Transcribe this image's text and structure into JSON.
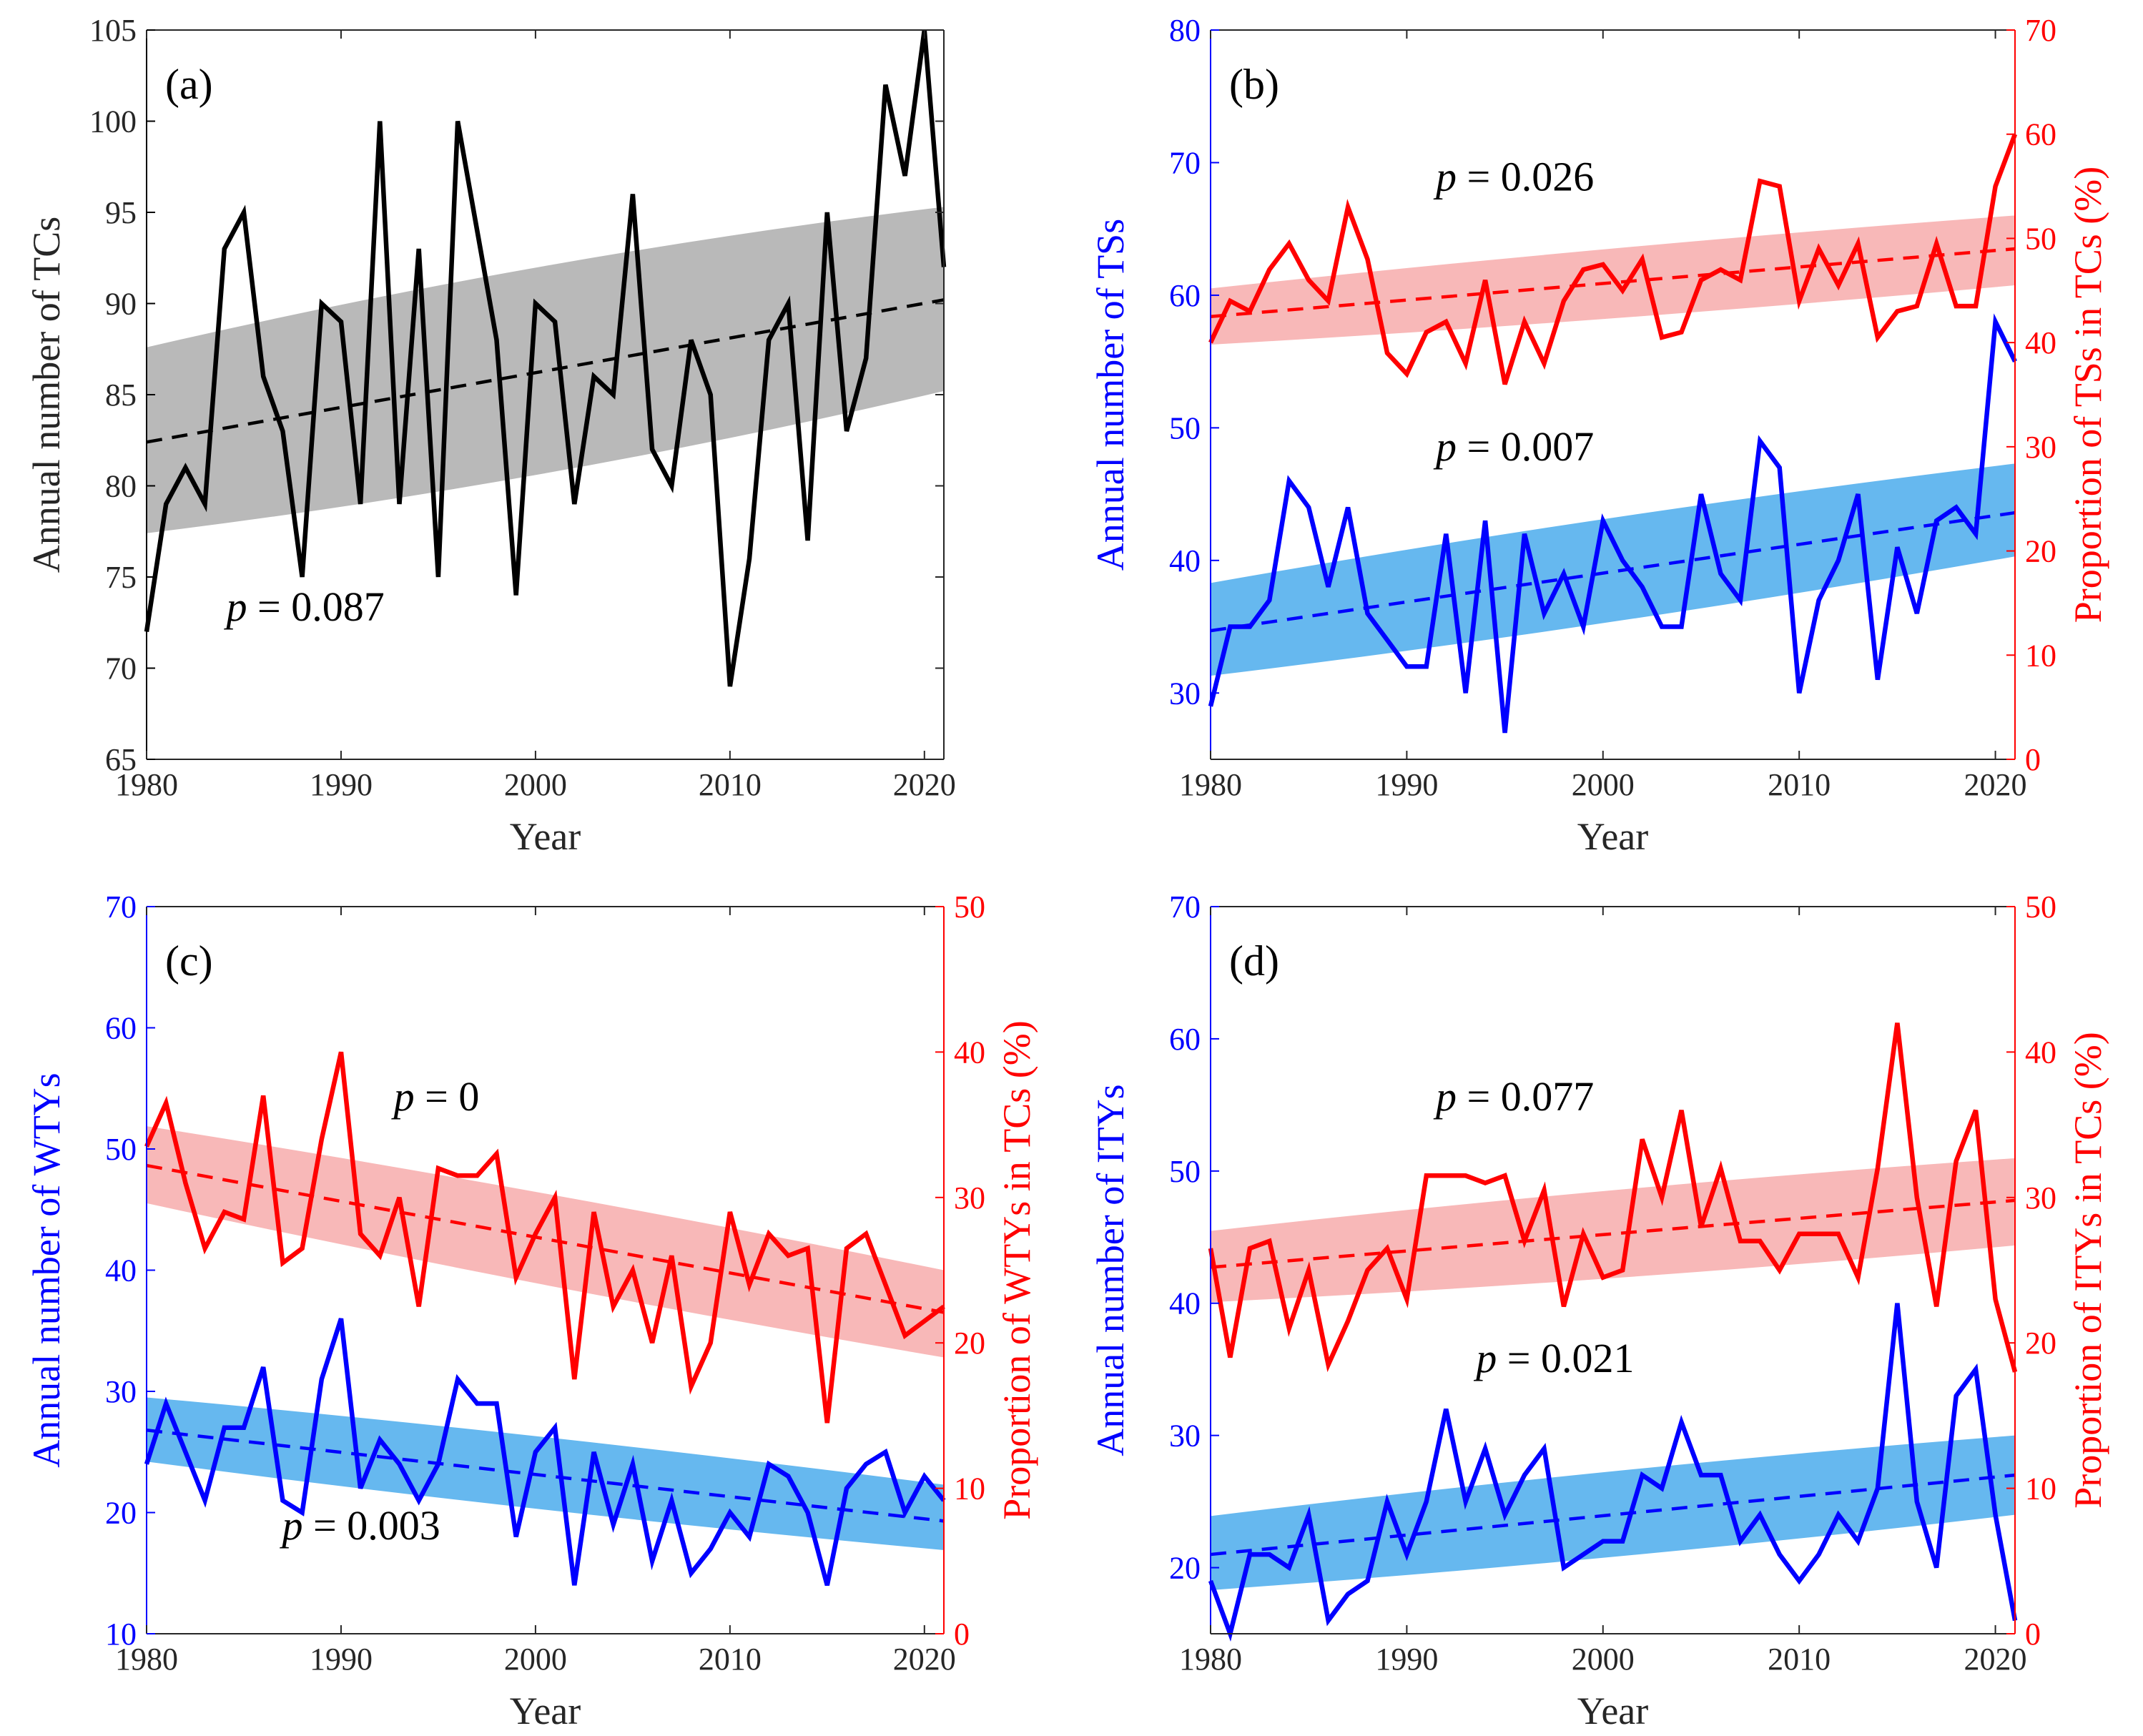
{
  "colors": {
    "black": "#000000",
    "blue": "#0000ff",
    "red": "#ff0000",
    "blue_band": "#66b8ef",
    "red_band": "#f8b8b8",
    "gray_band": "#b9b9b9"
  },
  "chart_data": [
    {
      "id": "a",
      "type": "line",
      "label": "(a)",
      "xlabel": "Year",
      "ylabel_left": "Annual number of TCs",
      "xlim": [
        1980,
        2021
      ],
      "xticks": [
        1980,
        1990,
        2000,
        2010,
        2020
      ],
      "left": {
        "ylim": [
          65,
          105
        ],
        "ticks": [
          65,
          70,
          75,
          80,
          85,
          90,
          95,
          100,
          105
        ]
      },
      "series": [
        {
          "name": "TCs",
          "axis": "left",
          "color": "#000000",
          "band": "#b9b9b9",
          "x_start": 1980,
          "values": [
            72,
            79,
            81,
            79,
            93,
            95,
            86,
            83,
            75,
            90,
            89,
            79,
            100,
            79,
            93,
            75,
            100,
            94,
            88,
            74,
            90,
            89,
            79,
            86,
            85,
            96,
            82,
            80,
            88,
            85,
            69,
            76,
            88,
            90,
            77,
            95,
            83,
            87,
            102,
            97,
            105,
            92
          ],
          "trend": [
            82.4,
            90.2
          ],
          "band_low": [
            77.4,
            85.2
          ],
          "band_high": [
            87.6,
            95.3
          ],
          "p_label": "= 0.087",
          "p_pos": "lower-left"
        }
      ]
    },
    {
      "id": "b",
      "type": "line",
      "label": "(b)",
      "xlabel": "Year",
      "ylabel_left": "Annual number of TSs",
      "ylabel_right": "Proportion of TSs in TCs (%)",
      "xlim": [
        1980,
        2021
      ],
      "xticks": [
        1980,
        1990,
        2000,
        2010,
        2020
      ],
      "left": {
        "ylim": [
          25,
          80
        ],
        "ticks": [
          30,
          40,
          50,
          60,
          70,
          80
        ]
      },
      "right": {
        "ylim": [
          0,
          70
        ],
        "ticks": [
          0,
          10,
          20,
          30,
          40,
          50,
          60,
          70
        ]
      },
      "series": [
        {
          "name": "TSs",
          "axis": "left",
          "color": "#0000ff",
          "band": "#66b8ef",
          "x_start": 1980,
          "values": [
            29,
            35,
            35,
            37,
            46,
            44,
            38,
            44,
            36,
            34,
            32,
            32,
            42,
            30,
            43,
            27,
            42,
            36,
            39,
            35,
            43,
            40,
            38,
            35,
            35,
            45,
            39,
            37,
            49,
            47,
            30,
            37,
            40,
            45,
            31,
            41,
            36,
            43,
            44,
            42,
            58,
            55
          ],
          "trend": [
            34.7,
            43.6
          ],
          "band_low": [
            31.3,
            40.3
          ],
          "band_high": [
            38.3,
            47.3
          ],
          "p_label": "= 0.007",
          "p_pos": "middle"
        },
        {
          "name": "Proportion of TSs",
          "axis": "right",
          "color": "#ff0000",
          "band": "#f8b8b8",
          "x_start": 1980,
          "values": [
            40,
            44,
            43,
            47,
            49.5,
            46,
            44,
            53,
            48,
            39,
            37,
            41,
            42,
            38,
            46,
            36,
            42,
            38,
            44,
            47,
            47.5,
            45,
            48,
            40.5,
            41,
            46,
            47,
            46,
            55.5,
            55,
            44,
            49,
            45.5,
            49.5,
            40.5,
            43,
            43.5,
            49.5,
            43.5,
            43.5,
            55,
            60
          ],
          "trend": [
            42.5,
            49.0
          ],
          "band_low": [
            39.8,
            45.5
          ],
          "band_high": [
            45.2,
            52.2
          ],
          "p_label": "= 0.026",
          "p_pos": "upper"
        }
      ]
    },
    {
      "id": "c",
      "type": "line",
      "label": "(c)",
      "xlabel": "Year",
      "ylabel_left": "Annual number of WTYs",
      "ylabel_right": "Proportion of WTYs in TCs (%)",
      "xlim": [
        1980,
        2021
      ],
      "xticks": [
        1980,
        1990,
        2000,
        2010,
        2020
      ],
      "left": {
        "ylim": [
          10,
          70
        ],
        "ticks": [
          10,
          20,
          30,
          40,
          50,
          60,
          70
        ]
      },
      "right": {
        "ylim": [
          0,
          50
        ],
        "ticks": [
          0,
          10,
          20,
          30,
          40,
          50
        ]
      },
      "series": [
        {
          "name": "WTYs",
          "axis": "left",
          "color": "#0000ff",
          "band": "#66b8ef",
          "x_start": 1980,
          "values": [
            24,
            29,
            25,
            21,
            27,
            27,
            32,
            21,
            20,
            31,
            36,
            22,
            26,
            24,
            21,
            24,
            31,
            29,
            29,
            18,
            25,
            27,
            14,
            25,
            19,
            24,
            16,
            21,
            15,
            17,
            20,
            18,
            24,
            23,
            20,
            14,
            22,
            24,
            25,
            20,
            23,
            21
          ],
          "trend": [
            26.8,
            19.3
          ],
          "band_low": [
            24.2,
            16.9
          ],
          "band_high": [
            29.5,
            22.3
          ],
          "p_label": "= 0.003",
          "p_pos": "lower"
        },
        {
          "name": "Proportion of WTYs",
          "axis": "right",
          "color": "#ff0000",
          "band": "#f8b8b8",
          "x_start": 1980,
          "values": [
            33.5,
            36.5,
            31,
            26.5,
            29,
            28.5,
            37,
            25.5,
            26.5,
            34,
            40,
            27.5,
            26,
            30,
            22.5,
            32,
            31.5,
            31.5,
            33,
            24.5,
            27.5,
            30,
            17.5,
            29,
            22.5,
            25,
            20,
            26,
            17,
            20,
            29,
            24,
            27.5,
            26,
            26.5,
            14.5,
            26.5,
            27.5,
            24,
            20.5,
            21.5,
            22.5
          ],
          "trend": [
            32.2,
            22.1
          ],
          "band_low": [
            29.6,
            19.0
          ],
          "band_high": [
            34.9,
            25.0
          ],
          "p_label": "= 0",
          "p_pos": "upper"
        }
      ]
    },
    {
      "id": "d",
      "type": "line",
      "label": "(d)",
      "xlabel": "Year",
      "ylabel_left": "Annual number of ITYs",
      "ylabel_right": "Proportion of ITYs in TCs (%)",
      "xlim": [
        1980,
        2021
      ],
      "xticks": [
        1980,
        1990,
        2000,
        2010,
        2020
      ],
      "left": {
        "ylim": [
          15,
          70
        ],
        "ticks": [
          20,
          30,
          40,
          50,
          60,
          70
        ]
      },
      "right": {
        "ylim": [
          0,
          50
        ],
        "ticks": [
          0,
          10,
          20,
          30,
          40,
          50
        ]
      },
      "series": [
        {
          "name": "ITYs",
          "axis": "left",
          "color": "#0000ff",
          "band": "#66b8ef",
          "x_start": 1980,
          "values": [
            19,
            15,
            21,
            21,
            20,
            24,
            16,
            18,
            19,
            25,
            21,
            25,
            32,
            25,
            29,
            24,
            27,
            29,
            20,
            21,
            22,
            22,
            27,
            26,
            31,
            27,
            27,
            22,
            24,
            21,
            19,
            21,
            24,
            22,
            26,
            40,
            25,
            20,
            33,
            35,
            24,
            16
          ],
          "trend": [
            21.0,
            27.0
          ],
          "band_low": [
            18.3,
            24.0
          ],
          "band_high": [
            23.9,
            30.0
          ],
          "p_label": "= 0.021",
          "p_pos": "middle"
        },
        {
          "name": "Proportion of ITYs",
          "axis": "right",
          "color": "#ff0000",
          "band": "#f8b8b8",
          "x_start": 1980,
          "values": [
            26.5,
            19,
            26.5,
            27,
            21,
            25,
            18.5,
            21.5,
            25,
            26.5,
            23,
            31.5,
            31.5,
            31.5,
            31,
            31.5,
            27,
            30.5,
            22.5,
            27.5,
            24.5,
            25,
            34,
            30,
            36,
            28,
            32,
            27,
            27,
            25,
            27.5,
            27.5,
            27.5,
            24.5,
            32,
            42,
            30,
            22.5,
            32.5,
            36,
            23,
            18
          ],
          "trend": [
            25.2,
            29.8
          ],
          "band_low": [
            22.8,
            26.7
          ],
          "band_high": [
            27.7,
            32.7
          ],
          "p_label": "= 0.077",
          "p_pos": "upper"
        }
      ]
    }
  ]
}
